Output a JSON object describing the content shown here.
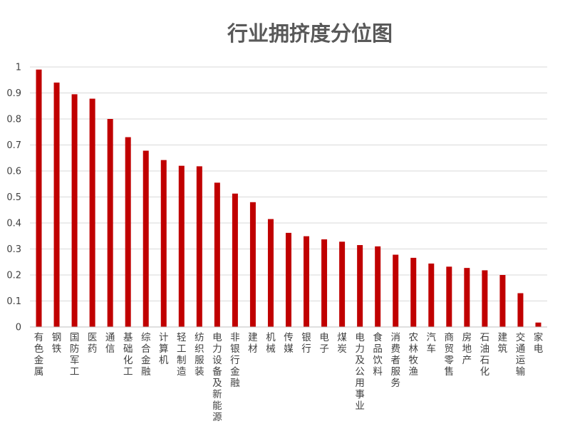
{
  "chart_data": {
    "type": "bar",
    "title": "行业拥挤度分位图",
    "xlabel": "",
    "ylabel": "",
    "ylim": [
      0,
      1
    ],
    "yticks": [
      0,
      0.1,
      0.2,
      0.3,
      0.4,
      0.5,
      0.6,
      0.7,
      0.8,
      0.9,
      1
    ],
    "ytick_labels": [
      "0",
      "0.1",
      "0.2",
      "0.3",
      "0.4",
      "0.5",
      "0.6",
      "0.7",
      "0.8",
      "0.9",
      "1"
    ],
    "grid": true,
    "legend": "none",
    "bar_color": "#c00000",
    "categories": [
      "有色金属",
      "钢铁",
      "国防军工",
      "医药",
      "通信",
      "基础化工",
      "综合金融",
      "计算机",
      "轻工制造",
      "纺织服装",
      "电力设备及新能源",
      "非银行金融",
      "建材",
      "机械",
      "传媒",
      "银行",
      "电子",
      "煤炭",
      "电力及公用事业",
      "食品饮料",
      "消费者服务",
      "农林牧渔",
      "汽车",
      "商贸零售",
      "房地产",
      "石油石化",
      "建筑",
      "交通运输",
      "家电"
    ],
    "values": [
      0.99,
      0.94,
      0.895,
      0.878,
      0.8,
      0.73,
      0.678,
      0.642,
      0.62,
      0.618,
      0.555,
      0.513,
      0.48,
      0.415,
      0.362,
      0.349,
      0.337,
      0.328,
      0.315,
      0.31,
      0.278,
      0.266,
      0.244,
      0.232,
      0.227,
      0.218,
      0.2,
      0.13,
      0.017
    ]
  }
}
